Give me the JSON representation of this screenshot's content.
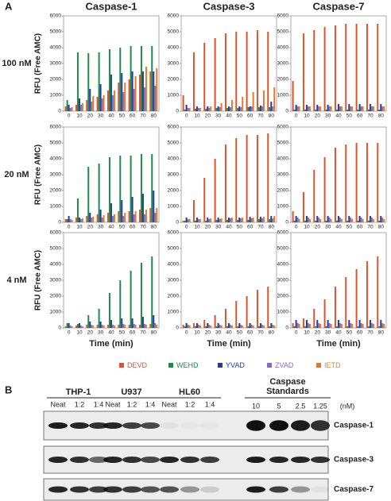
{
  "panel_a": {
    "label": "A",
    "columns": [
      {
        "title": "Caspase-1",
        "xlabel": "Time (min)"
      },
      {
        "title": "Caspase-3",
        "xlabel": "Time (min)"
      },
      {
        "title": "Caspase-7",
        "xlabel": "Time (min)"
      }
    ],
    "rows": [
      {
        "label": "100 nM",
        "ylabel": "RFU (Free AMC)"
      },
      {
        "label": "20 nM",
        "ylabel": "RFU (Free AMC)"
      },
      {
        "label": "4 nM",
        "ylabel": "RFU (Free AMC)"
      }
    ],
    "legend": [
      {
        "name": "DEVD",
        "color": "#d9542f"
      },
      {
        "name": "WEHD",
        "color": "#1e8a4b"
      },
      {
        "name": "YVAD",
        "color": "#1f3f9a"
      },
      {
        "name": "ZVAD",
        "color": "#8a6bbf"
      },
      {
        "name": "IETD",
        "color": "#e07b2a"
      }
    ]
  },
  "chart_data": [
    {
      "type": "bar",
      "categories": [
        "0",
        "10",
        "20",
        "30",
        "40",
        "50",
        "60",
        "70",
        "80"
      ],
      "ylim": [
        0,
        6000
      ],
      "yticks": [
        0,
        1000,
        2000,
        3000,
        4000,
        5000,
        6000
      ],
      "series": [
        {
          "values": [
            300,
            400,
            700,
            900,
            1300,
            1800,
            2000,
            2300,
            2500
          ]
        },
        {
          "values": [
            700,
            3700,
            3650,
            3700,
            3900,
            4000,
            4100,
            4100,
            4100
          ]
        },
        {
          "values": [
            400,
            800,
            1400,
            1700,
            2300,
            2400,
            2500,
            2500,
            2500
          ]
        },
        {
          "values": [
            200,
            400,
            600,
            800,
            1000,
            1200,
            1400,
            1500,
            1600
          ]
        },
        {
          "values": [
            250,
            500,
            950,
            1000,
            1300,
            1800,
            2200,
            2800,
            2700
          ]
        }
      ]
    },
    {
      "type": "bar",
      "categories": [
        "0",
        "10",
        "20",
        "30",
        "40",
        "50",
        "60",
        "70",
        "80"
      ],
      "ylim": [
        0,
        6000
      ],
      "yticks": [
        0,
        1000,
        2000,
        3000,
        4000,
        5000,
        6000
      ],
      "series": [
        {
          "values": [
            1000,
            3700,
            4300,
            4600,
            4900,
            5000,
            5000,
            5100,
            5000
          ]
        },
        {
          "values": [
            100,
            150,
            150,
            200,
            200,
            200,
            250,
            250,
            250
          ]
        },
        {
          "values": [
            400,
            300,
            300,
            300,
            300,
            300,
            300,
            350,
            600
          ]
        },
        {
          "values": [
            200,
            200,
            200,
            250,
            250,
            250,
            300,
            300,
            300
          ]
        },
        {
          "values": [
            200,
            200,
            300,
            500,
            700,
            900,
            1200,
            1300,
            1500
          ]
        }
      ]
    },
    {
      "type": "bar",
      "categories": [
        "0",
        "10",
        "20",
        "30",
        "40",
        "50",
        "60",
        "70",
        "80"
      ],
      "ylim": [
        0,
        6000
      ],
      "yticks": [
        0,
        1000,
        2000,
        3000,
        4000,
        5000,
        6000
      ],
      "series": [
        {
          "values": [
            1900,
            4900,
            5100,
            5300,
            5400,
            5500,
            5500,
            5500,
            5500
          ]
        },
        {
          "values": [
            100,
            100,
            100,
            100,
            100,
            100,
            100,
            100,
            100
          ]
        },
        {
          "values": [
            400,
            400,
            400,
            400,
            450,
            450,
            450,
            450,
            450
          ]
        },
        {
          "values": [
            300,
            300,
            300,
            300,
            300,
            300,
            300,
            300,
            300
          ]
        },
        {
          "values": [
            300,
            300,
            300,
            300,
            300,
            300,
            300,
            300,
            300
          ]
        }
      ]
    },
    {
      "type": "bar",
      "categories": [
        "0",
        "10",
        "20",
        "30",
        "40",
        "50",
        "60",
        "70",
        "80"
      ],
      "ylim": [
        0,
        6000
      ],
      "yticks": [
        0,
        1000,
        2000,
        3000,
        4000,
        5000,
        6000
      ],
      "series": [
        {
          "values": [
            200,
            300,
            400,
            500,
            600,
            700,
            700,
            800,
            900
          ]
        },
        {
          "values": [
            200,
            1500,
            3500,
            3700,
            4100,
            4200,
            4200,
            4300,
            4300
          ]
        },
        {
          "values": [
            400,
            300,
            600,
            800,
            1200,
            1400,
            1600,
            1800,
            2000
          ]
        },
        {
          "values": [
            200,
            200,
            300,
            300,
            400,
            400,
            500,
            500,
            600
          ]
        },
        {
          "values": [
            150,
            250,
            350,
            450,
            500,
            600,
            700,
            800,
            900
          ]
        }
      ]
    },
    {
      "type": "bar",
      "categories": [
        "0",
        "10",
        "20",
        "30",
        "40",
        "50",
        "60",
        "70",
        "80"
      ],
      "ylim": [
        0,
        6000
      ],
      "yticks": [
        0,
        1000,
        2000,
        3000,
        4000,
        5000,
        6000
      ],
      "series": [
        {
          "values": [
            100,
            1400,
            2800,
            4000,
            4900,
            5300,
            5500,
            5500,
            5600
          ]
        },
        {
          "values": [
            100,
            100,
            100,
            150,
            150,
            150,
            150,
            200,
            200
          ]
        },
        {
          "values": [
            300,
            300,
            300,
            300,
            300,
            300,
            350,
            350,
            400
          ]
        },
        {
          "values": [
            200,
            200,
            200,
            200,
            250,
            250,
            250,
            250,
            250
          ]
        },
        {
          "values": [
            200,
            200,
            250,
            250,
            300,
            300,
            300,
            350,
            400
          ]
        }
      ]
    },
    {
      "type": "bar",
      "categories": [
        "0",
        "10",
        "20",
        "30",
        "40",
        "50",
        "60",
        "70",
        "80"
      ],
      "ylim": [
        0,
        6000
      ],
      "yticks": [
        0,
        1000,
        2000,
        3000,
        4000,
        5000,
        6000
      ],
      "series": [
        {
          "values": [
            700,
            1900,
            3300,
            4100,
            4700,
            4900,
            5000,
            5000,
            5000
          ]
        },
        {
          "values": [
            100,
            100,
            100,
            100,
            100,
            100,
            100,
            100,
            100
          ]
        },
        {
          "values": [
            400,
            400,
            400,
            400,
            400,
            400,
            400,
            400,
            400
          ]
        },
        {
          "values": [
            300,
            300,
            300,
            300,
            300,
            300,
            300,
            300,
            300
          ]
        },
        {
          "values": [
            200,
            200,
            200,
            200,
            200,
            200,
            200,
            200,
            200
          ]
        }
      ]
    },
    {
      "type": "bar",
      "categories": [
        "0",
        "10",
        "20",
        "30",
        "40",
        "50",
        "60",
        "70",
        "80"
      ],
      "ylim": [
        0,
        6000
      ],
      "yticks": [
        0,
        1000,
        2000,
        3000,
        4000,
        5000,
        6000
      ],
      "series": [
        {
          "values": [
            100,
            150,
            200,
            200,
            200,
            200,
            200,
            200,
            250
          ]
        },
        {
          "values": [
            300,
            250,
            800,
            1200,
            2200,
            3000,
            3600,
            4100,
            4500
          ]
        },
        {
          "values": [
            300,
            300,
            400,
            400,
            500,
            600,
            600,
            700,
            800
          ]
        },
        {
          "values": [
            150,
            150,
            200,
            200,
            200,
            250,
            250,
            250,
            300
          ]
        },
        {
          "values": [
            100,
            100,
            150,
            150,
            150,
            200,
            200,
            200,
            200
          ]
        }
      ]
    },
    {
      "type": "bar",
      "categories": [
        "0",
        "10",
        "20",
        "30",
        "40",
        "50",
        "60",
        "70",
        "80"
      ],
      "ylim": [
        0,
        6000
      ],
      "yticks": [
        0,
        1000,
        2000,
        3000,
        4000,
        5000,
        6000
      ],
      "series": [
        {
          "values": [
            200,
            300,
            500,
            800,
            1200,
            1700,
            2000,
            2400,
            2600
          ]
        },
        {
          "values": [
            100,
            100,
            100,
            100,
            100,
            100,
            100,
            100,
            100
          ]
        },
        {
          "values": [
            300,
            300,
            300,
            300,
            300,
            300,
            300,
            300,
            300
          ]
        },
        {
          "values": [
            200,
            200,
            200,
            200,
            200,
            200,
            200,
            200,
            200
          ]
        },
        {
          "values": [
            150,
            150,
            150,
            150,
            150,
            150,
            150,
            150,
            150
          ]
        }
      ]
    },
    {
      "type": "bar",
      "categories": [
        "0",
        "10",
        "20",
        "30",
        "40",
        "50",
        "60",
        "70",
        "80"
      ],
      "ylim": [
        0,
        6000
      ],
      "yticks": [
        0,
        1000,
        2000,
        3000,
        4000,
        5000,
        6000
      ],
      "series": [
        {
          "values": [
            300,
            600,
            1200,
            1800,
            2600,
            3200,
            3700,
            4200,
            4500
          ]
        },
        {
          "values": [
            100,
            100,
            100,
            100,
            100,
            100,
            100,
            100,
            100
          ]
        },
        {
          "values": [
            500,
            500,
            500,
            500,
            500,
            500,
            500,
            500,
            500
          ]
        },
        {
          "values": [
            300,
            300,
            300,
            300,
            300,
            300,
            300,
            300,
            300
          ]
        },
        {
          "values": [
            250,
            250,
            250,
            250,
            250,
            250,
            250,
            250,
            250
          ]
        }
      ]
    }
  ],
  "panel_b": {
    "label": "B",
    "groups": [
      "THP-1",
      "U937",
      "HL60"
    ],
    "lanes": [
      "Neat",
      "1:2",
      "1:4",
      "Neat",
      "1:2",
      "1:4",
      "Neat",
      "1:2",
      "1:4"
    ],
    "standards_title": [
      "Caspase",
      "Standards"
    ],
    "standards_lanes": [
      "10",
      "5",
      "2.5",
      "1.25"
    ],
    "unit": "(nM)",
    "blots": [
      "Caspase-1",
      "Caspase-3",
      "Caspase-7"
    ]
  }
}
